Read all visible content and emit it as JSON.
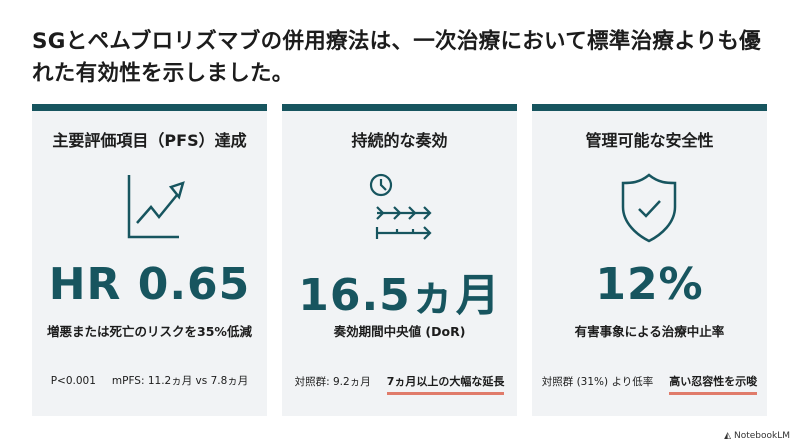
{
  "title": "SGとペムブロリズマブの併用療法は、一次治療において標準治療よりも優れた有効性を示しました。",
  "colors": {
    "accent": "#17555f",
    "card_bg": "#f1f3f5",
    "highlight": "#e07b6a"
  },
  "cards": [
    {
      "heading": "主要評価項目（PFS）達成",
      "icon": "trend-up-chart-icon",
      "value": "HR 0.65",
      "subtitle": "増悪または死亡のリスクを35%低減",
      "notes": [
        "P<0.001",
        "mPFS: 11.2ヵ月 vs 7.8ヵ月"
      ]
    },
    {
      "heading": "持続的な奏効",
      "icon": "clock-timeline-icon",
      "value": "16.5ヵ月",
      "subtitle": "奏効期間中央値 (DoR)",
      "notes": [
        "対照群: 9.2ヵ月"
      ],
      "highlight": "7ヵ月以上の大幅な延長"
    },
    {
      "heading": "管理可能な安全性",
      "icon": "shield-check-icon",
      "value": "12%",
      "subtitle": "有害事象による治療中止率",
      "notes": [
        "対照群 (31%) より低率"
      ],
      "highlight": "高い忍容性を示唆"
    }
  ],
  "brand": "NotebookLM"
}
